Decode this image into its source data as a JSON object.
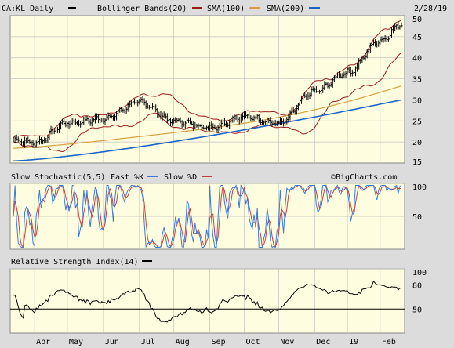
{
  "header": {
    "symbol": "CA:KL Daily",
    "bb_label": "Bollinger Bands(20)",
    "sma100_label": "SMA(100)",
    "sma200_label": "SMA(200)",
    "date": "2/28/19"
  },
  "stoch_header": {
    "title": "Slow Stochastic(5,5)",
    "fast": "Fast %K",
    "slow": "Slow %D"
  },
  "rsi_header": {
    "title": "Relative Strength Index(14)"
  },
  "watermark": "©BigCharts.com",
  "colors": {
    "background": "#fffde0",
    "frame": "#dcdcdc",
    "price": "#000000",
    "bollinger": "#9b1b1b",
    "sma100": "#d4a040",
    "sma200": "#1a64c8",
    "fast_k": "#3a7adc",
    "slow_d": "#c04040",
    "rsi": "#000000"
  },
  "chart_data": [
    {
      "type": "ohlc",
      "title": "CA:KL Daily",
      "y_ticks": [
        "15",
        "20",
        "25",
        "30",
        "35",
        "40",
        "45",
        "50"
      ],
      "ylim": [
        15,
        50
      ],
      "x_ticks": [
        "Apr",
        "May",
        "Jun",
        "Jul",
        "Aug",
        "Sep",
        "Oct",
        "Nov",
        "Dec",
        "19",
        "Feb"
      ],
      "close_by_month": {
        "start": 20.5,
        "Apr": 19.8,
        "May": 24.5,
        "Jun": 25.5,
        "Jul": 29.5,
        "Aug": 25.0,
        "Sep": 23.5,
        "Oct": 26.0,
        "Nov": 24.5,
        "Dec": 32.0,
        "Jan": 36.5,
        "Feb": 44.0,
        "end": 48.0
      },
      "series": [
        {
          "name": "Bollinger Bands(20)",
          "color": "#9b1b1b"
        },
        {
          "name": "SMA(100)",
          "color": "#d4a040",
          "start": 18.5,
          "end": 33.5
        },
        {
          "name": "SMA(200)",
          "color": "#1a64c8",
          "start": 15.5,
          "end": 30.0
        }
      ]
    },
    {
      "type": "line",
      "title": "Slow Stochastic(5,5)",
      "y_ticks": [
        "50",
        "100"
      ],
      "ylim": [
        0,
        100
      ],
      "series": [
        {
          "name": "Fast %K"
        },
        {
          "name": "Slow %D"
        }
      ]
    },
    {
      "type": "line",
      "title": "Relative Strength Index(14)",
      "y_ticks": [
        "50",
        "80",
        "100"
      ],
      "ylim": [
        20,
        100
      ],
      "reference_line": 50,
      "series": [
        {
          "name": "RSI(14)"
        }
      ]
    }
  ]
}
